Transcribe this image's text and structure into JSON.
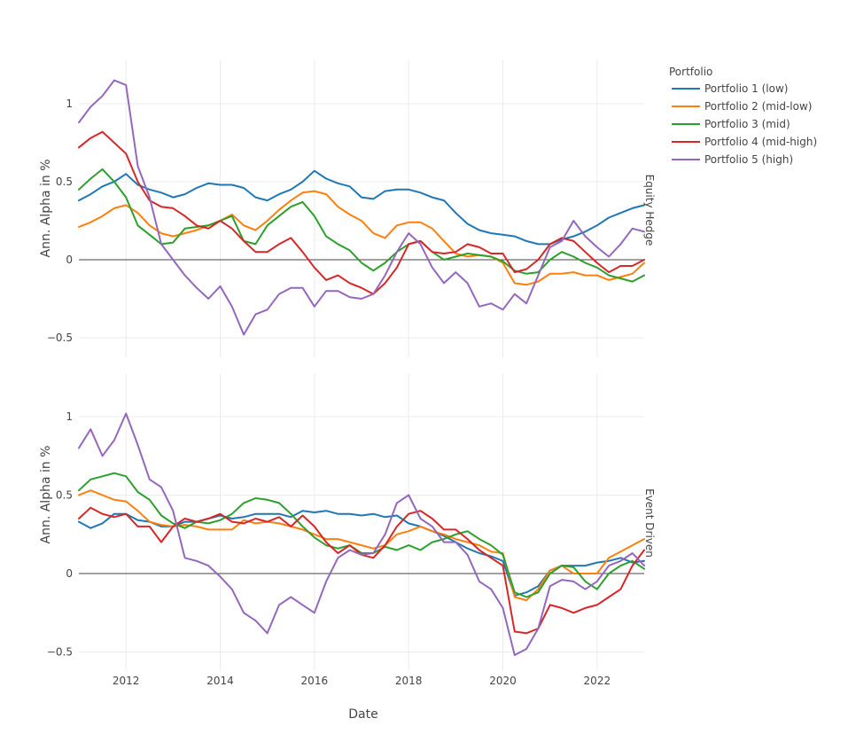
{
  "chart_data": {
    "type": "line",
    "xlabel": "Date",
    "ylabel": "Ann. Alpha in %",
    "x_range": [
      2011.0,
      2023.0
    ],
    "x_ticks": [
      2012,
      2014,
      2016,
      2018,
      2020,
      2022
    ],
    "x_tick_labels": [
      "2012",
      "2014",
      "2016",
      "2018",
      "2020",
      "2022"
    ],
    "y_ticks": [
      -0.5,
      0,
      0.5,
      1
    ],
    "y_tick_labels": [
      "−0.5",
      "0",
      "0.5",
      "1"
    ],
    "grid": true,
    "legend": {
      "title": "Portfolio",
      "placement": "top-right",
      "entries": [
        "Portfolio 1 (low)",
        "Portfolio 2 (mid-low)",
        "Portfolio 3 (mid)",
        "Portfolio 4 (mid-high)",
        "Portfolio 5 (high)"
      ]
    },
    "colors": [
      "#1f77b4",
      "#ff7f0e",
      "#2ca02c",
      "#d62728",
      "#9467bd"
    ],
    "x": [
      2011.0,
      2011.25,
      2011.5,
      2011.75,
      2012.0,
      2012.25,
      2012.5,
      2012.75,
      2013.0,
      2013.25,
      2013.5,
      2013.75,
      2014.0,
      2014.25,
      2014.5,
      2014.75,
      2015.0,
      2015.25,
      2015.5,
      2015.75,
      2016.0,
      2016.25,
      2016.5,
      2016.75,
      2017.0,
      2017.25,
      2017.5,
      2017.75,
      2018.0,
      2018.25,
      2018.5,
      2018.75,
      2019.0,
      2019.25,
      2019.5,
      2019.75,
      2020.0,
      2020.25,
      2020.5,
      2020.75,
      2021.0,
      2021.25,
      2021.5,
      2021.75,
      2022.0,
      2022.25,
      2022.5,
      2022.75,
      2023.0
    ],
    "panels": [
      {
        "facet": "Equity Hedge",
        "ylim": [
          -0.63,
          1.25
        ],
        "series": [
          {
            "name": "Portfolio 1 (low)",
            "values": [
              0.38,
              0.42,
              0.47,
              0.5,
              0.55,
              0.48,
              0.45,
              0.43,
              0.4,
              0.42,
              0.46,
              0.49,
              0.48,
              0.48,
              0.46,
              0.4,
              0.38,
              0.42,
              0.45,
              0.5,
              0.57,
              0.52,
              0.49,
              0.47,
              0.4,
              0.39,
              0.44,
              0.45,
              0.45,
              0.43,
              0.4,
              0.38,
              0.3,
              0.23,
              0.19,
              0.17,
              0.16,
              0.15,
              0.12,
              0.1,
              0.1,
              0.13,
              0.15,
              0.18,
              0.22,
              0.27,
              0.3,
              0.33,
              0.35
            ]
          },
          {
            "name": "Portfolio 2 (mid-low)",
            "values": [
              0.21,
              0.24,
              0.28,
              0.33,
              0.35,
              0.3,
              0.22,
              0.17,
              0.15,
              0.17,
              0.19,
              0.22,
              0.25,
              0.29,
              0.22,
              0.19,
              0.25,
              0.32,
              0.38,
              0.43,
              0.44,
              0.42,
              0.34,
              0.29,
              0.25,
              0.17,
              0.14,
              0.22,
              0.24,
              0.24,
              0.2,
              0.12,
              0.04,
              0.02,
              0.03,
              0.02,
              -0.02,
              -0.15,
              -0.16,
              -0.14,
              -0.09,
              -0.09,
              -0.08,
              -0.1,
              -0.1,
              -0.13,
              -0.11,
              -0.09,
              -0.02
            ]
          },
          {
            "name": "Portfolio 3 (mid)",
            "values": [
              0.45,
              0.52,
              0.58,
              0.5,
              0.4,
              0.22,
              0.16,
              0.1,
              0.11,
              0.2,
              0.21,
              0.22,
              0.25,
              0.28,
              0.12,
              0.1,
              0.22,
              0.28,
              0.34,
              0.37,
              0.28,
              0.15,
              0.1,
              0.06,
              -0.02,
              -0.07,
              -0.02,
              0.05,
              0.1,
              0.12,
              0.05,
              0.0,
              0.02,
              0.04,
              0.03,
              0.02,
              -0.01,
              -0.07,
              -0.09,
              -0.08,
              0.0,
              0.05,
              0.02,
              -0.02,
              -0.05,
              -0.1,
              -0.12,
              -0.14,
              -0.1
            ]
          },
          {
            "name": "Portfolio 4 (mid-high)",
            "values": [
              0.72,
              0.78,
              0.82,
              0.75,
              0.68,
              0.5,
              0.38,
              0.34,
              0.33,
              0.28,
              0.22,
              0.2,
              0.25,
              0.2,
              0.12,
              0.05,
              0.05,
              0.1,
              0.14,
              0.05,
              -0.05,
              -0.13,
              -0.1,
              -0.15,
              -0.18,
              -0.22,
              -0.15,
              -0.05,
              0.1,
              0.12,
              0.05,
              0.04,
              0.05,
              0.1,
              0.08,
              0.04,
              0.04,
              -0.08,
              -0.06,
              0.0,
              0.1,
              0.14,
              0.12,
              0.05,
              -0.02,
              -0.08,
              -0.04,
              -0.04,
              0.0
            ]
          },
          {
            "name": "Portfolio 5 (high)",
            "values": [
              0.88,
              0.98,
              1.05,
              1.15,
              1.12,
              0.6,
              0.4,
              0.1,
              0.0,
              -0.1,
              -0.18,
              -0.25,
              -0.17,
              -0.3,
              -0.48,
              -0.35,
              -0.32,
              -0.22,
              -0.18,
              -0.18,
              -0.3,
              -0.2,
              -0.2,
              -0.24,
              -0.25,
              -0.22,
              -0.1,
              0.05,
              0.17,
              0.1,
              -0.05,
              -0.15,
              -0.08,
              -0.15,
              -0.3,
              -0.28,
              -0.32,
              -0.22,
              -0.28,
              -0.1,
              0.08,
              0.12,
              0.25,
              0.15,
              0.08,
              0.02,
              0.1,
              0.2,
              0.18
            ]
          }
        ]
      },
      {
        "facet": "Event Driven",
        "ylim": [
          -0.6,
          1.25
        ],
        "series": [
          {
            "name": "Portfolio 1 (low)",
            "values": [
              0.33,
              0.29,
              0.32,
              0.38,
              0.38,
              0.34,
              0.33,
              0.3,
              0.3,
              0.33,
              0.33,
              0.35,
              0.37,
              0.35,
              0.36,
              0.38,
              0.38,
              0.38,
              0.36,
              0.4,
              0.39,
              0.4,
              0.38,
              0.38,
              0.37,
              0.38,
              0.36,
              0.37,
              0.32,
              0.3,
              0.27,
              0.24,
              0.2,
              0.16,
              0.13,
              0.11,
              0.08,
              -0.14,
              -0.12,
              -0.08,
              0.02,
              0.05,
              0.05,
              0.05,
              0.07,
              0.08,
              0.1,
              0.07,
              0.08
            ]
          },
          {
            "name": "Portfolio 2 (mid-low)",
            "values": [
              0.5,
              0.53,
              0.5,
              0.47,
              0.46,
              0.4,
              0.33,
              0.31,
              0.3,
              0.31,
              0.3,
              0.28,
              0.28,
              0.28,
              0.34,
              0.32,
              0.33,
              0.32,
              0.3,
              0.28,
              0.25,
              0.22,
              0.22,
              0.2,
              0.18,
              0.16,
              0.18,
              0.25,
              0.27,
              0.3,
              0.27,
              0.25,
              0.22,
              0.2,
              0.18,
              0.14,
              0.13,
              -0.15,
              -0.17,
              -0.1,
              0.02,
              0.05,
              0.0,
              0.0,
              0.0,
              0.1,
              0.14,
              0.18,
              0.22
            ]
          },
          {
            "name": "Portfolio 3 (mid)",
            "values": [
              0.53,
              0.6,
              0.62,
              0.64,
              0.62,
              0.52,
              0.47,
              0.37,
              0.32,
              0.29,
              0.33,
              0.32,
              0.34,
              0.38,
              0.45,
              0.48,
              0.47,
              0.45,
              0.38,
              0.3,
              0.23,
              0.18,
              0.16,
              0.18,
              0.13,
              0.13,
              0.17,
              0.15,
              0.18,
              0.15,
              0.2,
              0.22,
              0.25,
              0.27,
              0.22,
              0.18,
              0.12,
              -0.12,
              -0.15,
              -0.12,
              0.0,
              0.05,
              0.04,
              -0.05,
              -0.1,
              0.0,
              0.05,
              0.08,
              0.03
            ]
          },
          {
            "name": "Portfolio 4 (mid-high)",
            "values": [
              0.35,
              0.42,
              0.38,
              0.36,
              0.38,
              0.3,
              0.3,
              0.2,
              0.3,
              0.35,
              0.33,
              0.35,
              0.38,
              0.33,
              0.32,
              0.35,
              0.33,
              0.36,
              0.3,
              0.37,
              0.3,
              0.2,
              0.13,
              0.18,
              0.12,
              0.1,
              0.18,
              0.3,
              0.38,
              0.4,
              0.35,
              0.28,
              0.28,
              0.22,
              0.15,
              0.1,
              0.05,
              -0.37,
              -0.38,
              -0.35,
              -0.2,
              -0.22,
              -0.25,
              -0.22,
              -0.2,
              -0.15,
              -0.1,
              0.05,
              0.15
            ]
          },
          {
            "name": "Portfolio 5 (high)",
            "values": [
              0.8,
              0.92,
              0.75,
              0.85,
              1.02,
              0.82,
              0.6,
              0.55,
              0.4,
              0.1,
              0.08,
              0.05,
              -0.02,
              -0.1,
              -0.25,
              -0.3,
              -0.38,
              -0.2,
              -0.15,
              -0.2,
              -0.25,
              -0.05,
              0.1,
              0.15,
              0.12,
              0.13,
              0.25,
              0.45,
              0.5,
              0.35,
              0.3,
              0.2,
              0.2,
              0.12,
              -0.05,
              -0.1,
              -0.22,
              -0.52,
              -0.48,
              -0.35,
              -0.08,
              -0.04,
              -0.05,
              -0.1,
              -0.05,
              0.05,
              0.08,
              0.13,
              0.05
            ]
          }
        ]
      }
    ]
  }
}
